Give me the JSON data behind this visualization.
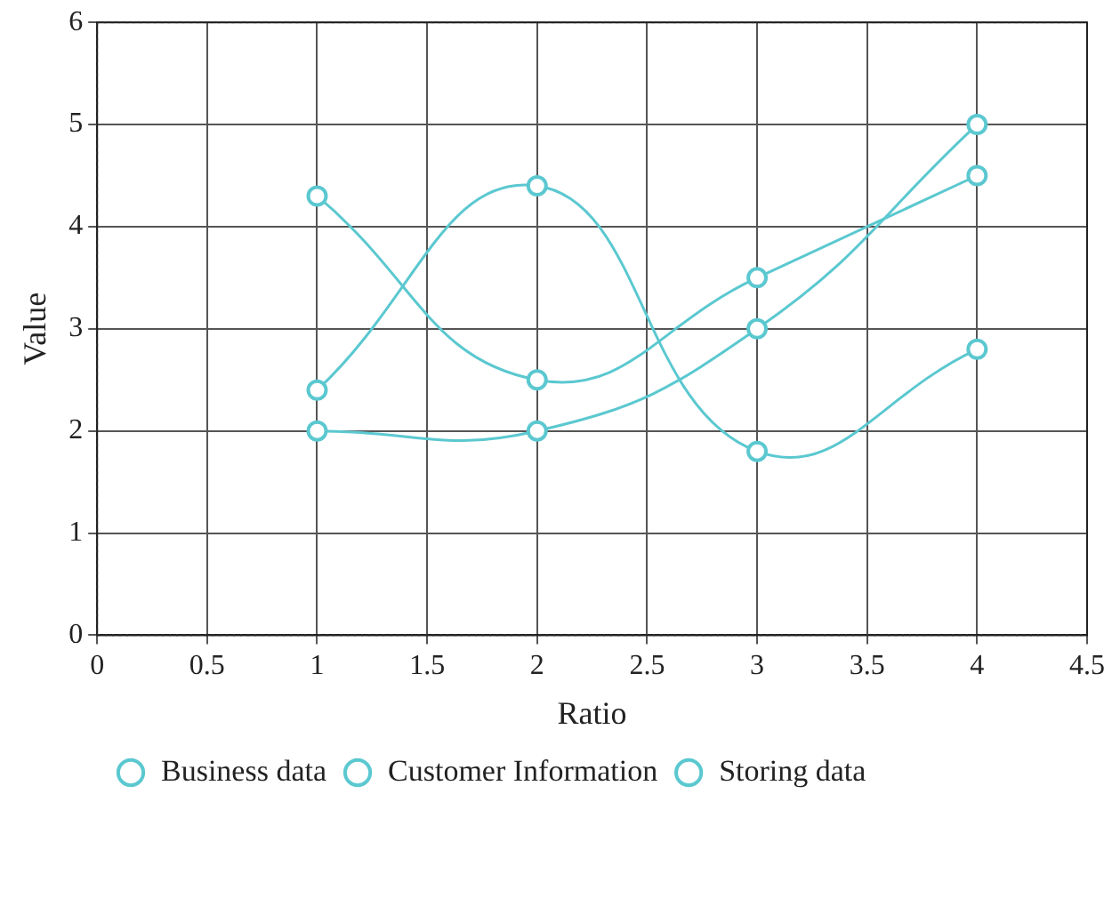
{
  "chart_data": {
    "type": "line",
    "xlabel": "Ratio",
    "ylabel": "Value",
    "x": [
      1,
      2,
      3,
      4
    ],
    "series": [
      {
        "name": "Business data",
        "color": "#5bc8d0",
        "values": [
          4.3,
          2.5,
          3.5,
          4.5
        ]
      },
      {
        "name": "Customer Information",
        "color": "#5bc8d0",
        "values": [
          2.4,
          4.4,
          1.8,
          2.8
        ]
      },
      {
        "name": "Storing data",
        "color": "#5bc8d0",
        "values": [
          2.0,
          2.0,
          3.0,
          5.0
        ]
      }
    ],
    "xlim": [
      0,
      4.5
    ],
    "xticks": [
      0,
      0.5,
      1,
      1.5,
      2,
      2.5,
      3,
      3.5,
      4,
      4.5
    ],
    "ylim": [
      0,
      6
    ],
    "yticks": [
      0,
      1,
      2,
      3,
      4,
      5,
      6
    ],
    "grid": true,
    "legend": "bottom left",
    "marker": "circle",
    "line_style": "solid"
  }
}
